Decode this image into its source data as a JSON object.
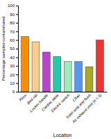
{
  "chart_data": {
    "type": "bar",
    "categories": [
      "Floor",
      "Bed rail",
      "Locker handle",
      "Cardiac table",
      "Electric switch",
      "Chair",
      "Toilet seat and flush",
      "Air exhaust vent (n = 5)"
    ],
    "values": [
      64,
      58,
      46,
      41,
      35,
      35,
      29,
      60
    ],
    "colors": [
      "#FF8C00",
      "#FFCC88",
      "#BB44CC",
      "#22CCAA",
      "#99EEBB",
      "#5599EE",
      "#AAAA22",
      "#EE3333"
    ],
    "xlabel": "Location",
    "ylabel": "Percentage sampled contaminated",
    "ylim": [
      0,
      100
    ],
    "yticks": [
      0,
      10,
      20,
      30,
      40,
      50,
      60,
      70,
      80,
      90,
      100
    ]
  }
}
